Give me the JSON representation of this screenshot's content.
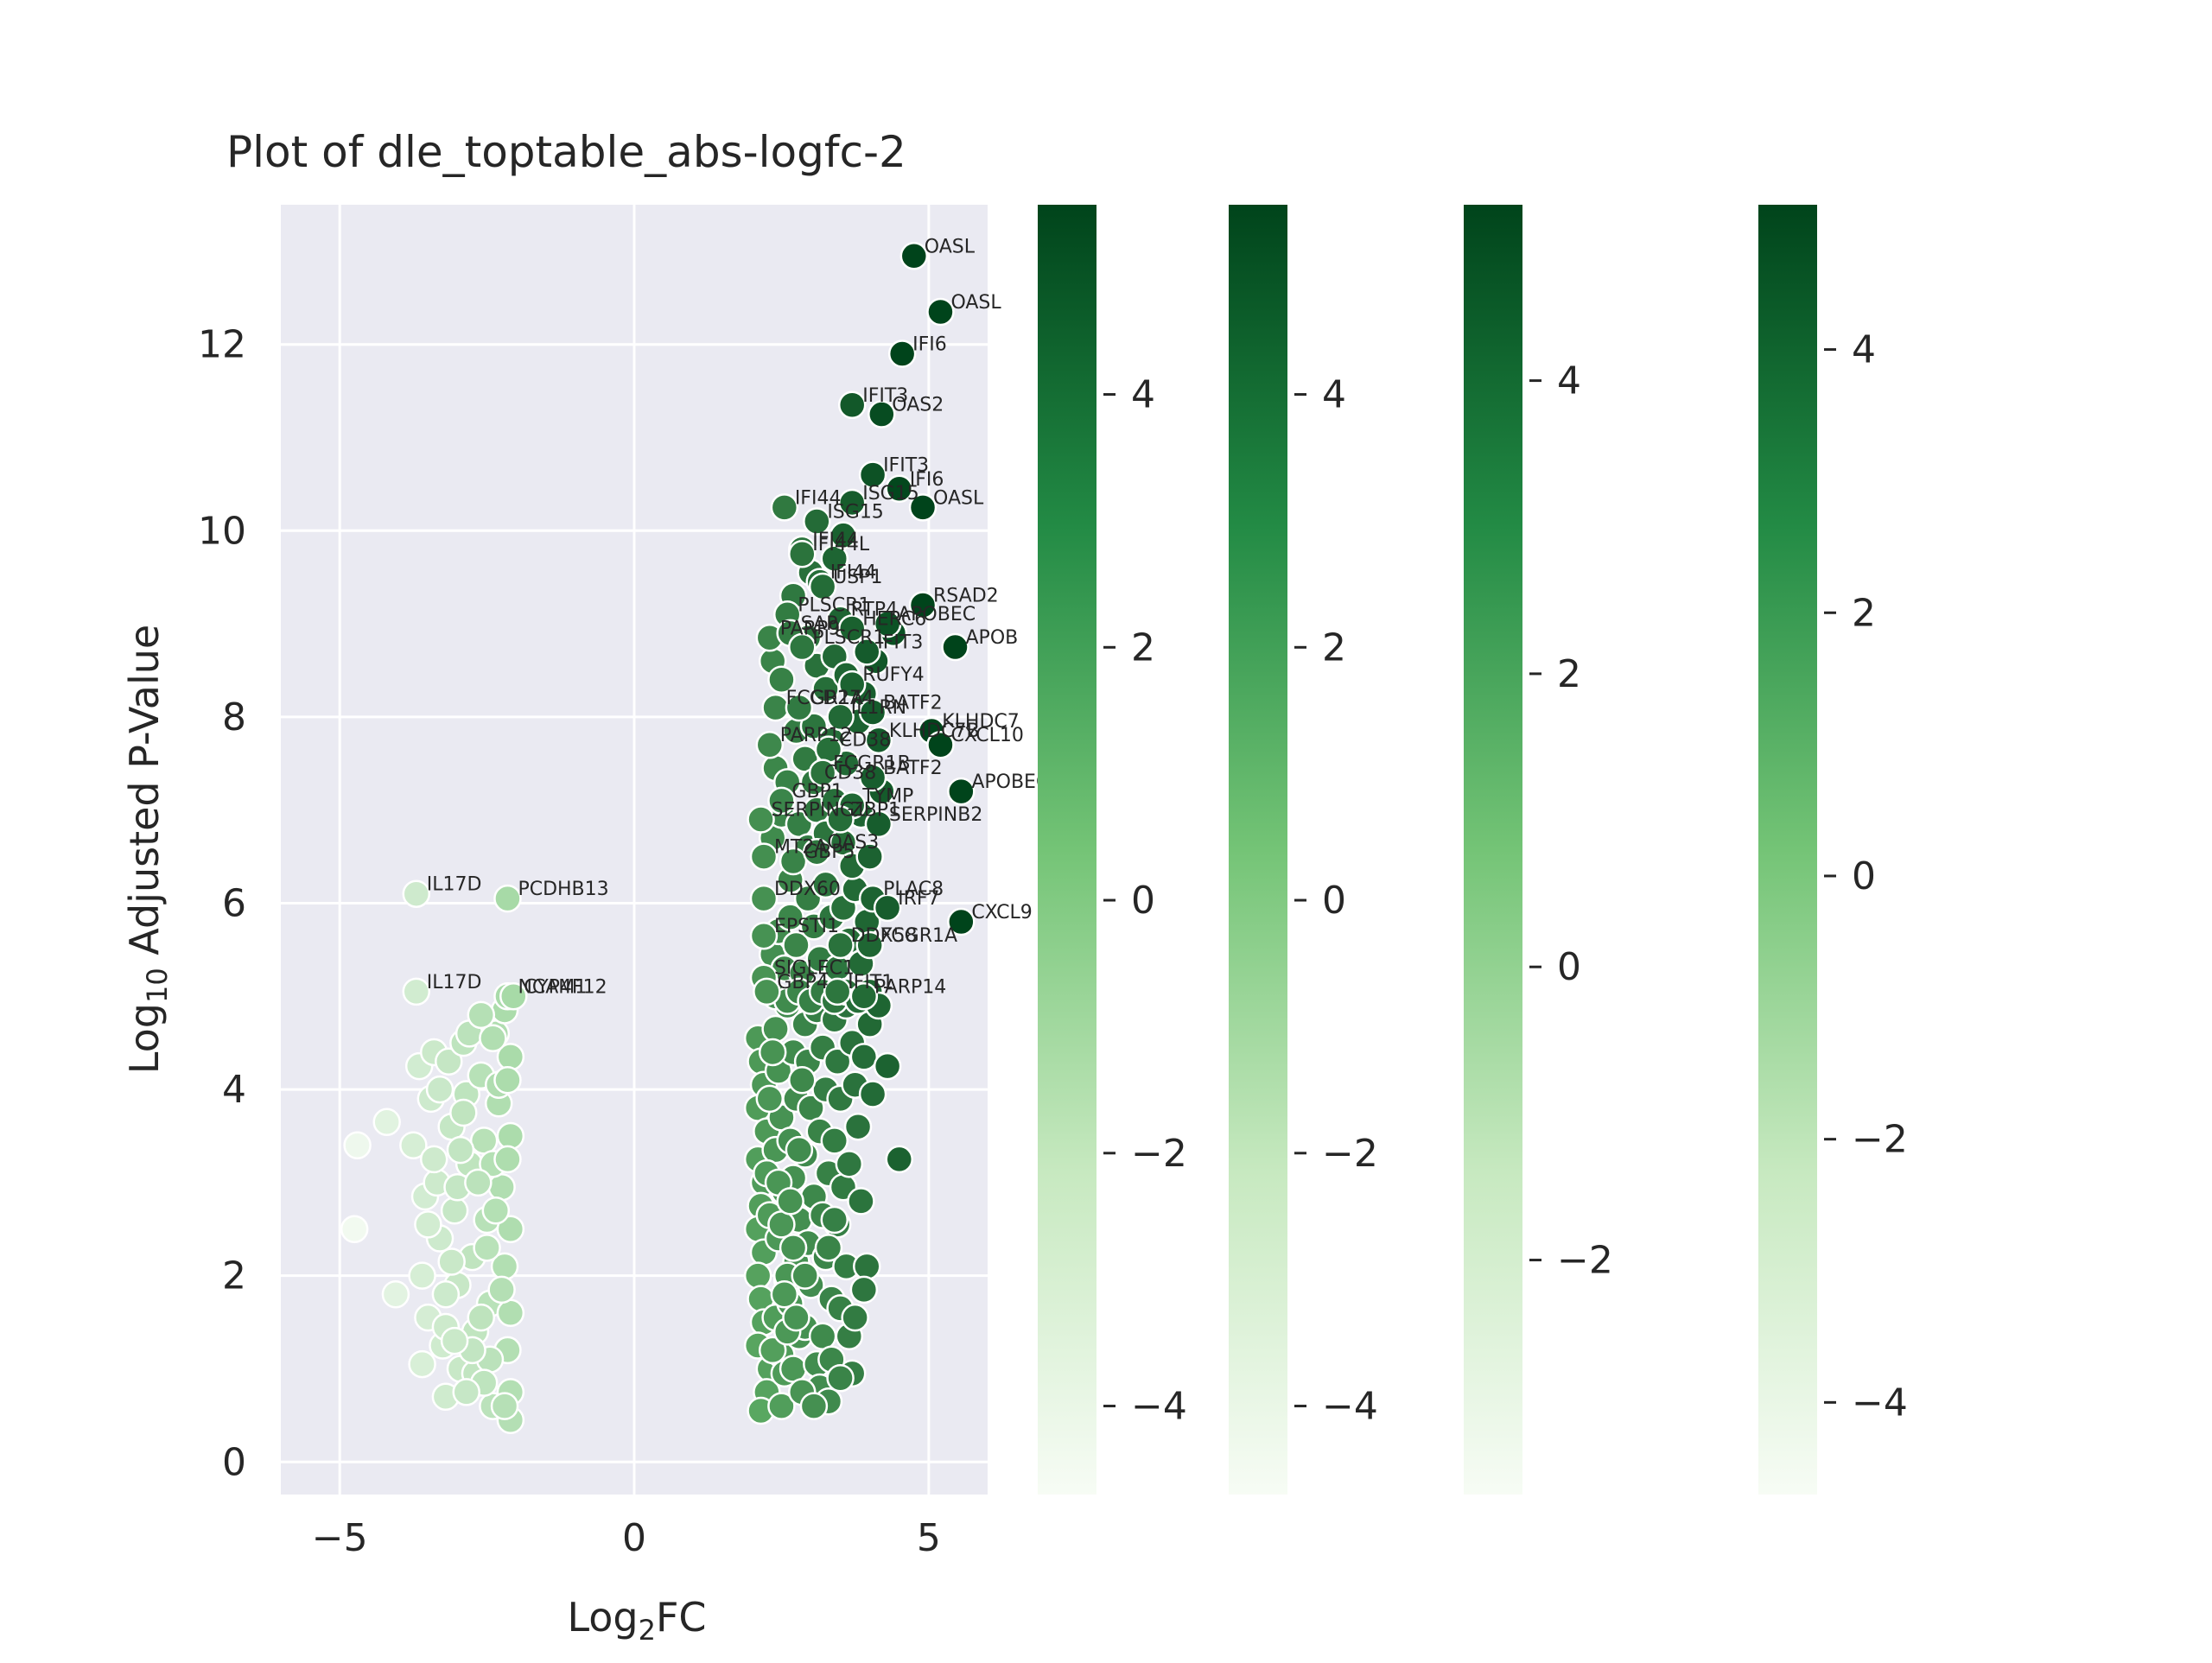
{
  "chart_data": {
    "type": "scatter",
    "title": "Plot of dle_toptable_abs-logfc-2",
    "xlabel_main": "Log",
    "xlabel_sub": "2",
    "xlabel_tail": "FC",
    "ylabel_main": "Log",
    "ylabel_sub": "10",
    "ylabel_tail": " Adjusted P-Value",
    "xlim": [
      -6,
      6
    ],
    "ylim": [
      -0.35,
      13.5
    ],
    "xticks": [
      -5,
      0,
      5
    ],
    "xtick_labels": [
      "−5",
      "0",
      "5"
    ],
    "yticks": [
      0,
      2,
      4,
      6,
      8,
      10,
      12
    ],
    "ytick_labels": [
      "0",
      "2",
      "4",
      "6",
      "8",
      "10",
      "12"
    ],
    "grid": true,
    "color_scale": {
      "low": "#f7fcf5",
      "mid": "#74c476",
      "high": "#00441b"
    },
    "colorbars": [
      {
        "range": [
          -4.7,
          5.5
        ],
        "ticks": [
          -4,
          -2,
          0,
          2,
          4
        ],
        "tick_labels": [
          "−4",
          "−2",
          "0",
          "2",
          "4"
        ]
      },
      {
        "range": [
          -4.7,
          5.5
        ],
        "ticks": [
          -4,
          -2,
          0,
          2,
          4
        ],
        "tick_labels": [
          "−4",
          "−2",
          "0",
          "2",
          "4"
        ]
      },
      {
        "range": [
          -3.6,
          5.2
        ],
        "ticks": [
          -2,
          0,
          2,
          4
        ],
        "tick_labels": [
          "−2",
          "0",
          "2",
          "4"
        ]
      },
      {
        "range": [
          -4.7,
          5.1
        ],
        "ticks": [
          -4,
          -2,
          0,
          2,
          4
        ],
        "tick_labels": [
          "−4",
          "−2",
          "0",
          "2",
          "4"
        ]
      }
    ],
    "labeled_points": [
      {
        "x": 4.75,
        "y": 12.95,
        "label": "OASL"
      },
      {
        "x": 5.2,
        "y": 12.35,
        "label": "OASL"
      },
      {
        "x": 4.55,
        "y": 11.9,
        "label": "IFI6"
      },
      {
        "x": 3.7,
        "y": 11.35,
        "label": "IFIT3"
      },
      {
        "x": 4.2,
        "y": 11.25,
        "label": "OAS2"
      },
      {
        "x": 4.05,
        "y": 10.6,
        "label": "IFIT3"
      },
      {
        "x": 4.5,
        "y": 10.45,
        "label": "IFI6"
      },
      {
        "x": 3.7,
        "y": 10.3,
        "label": "ISG15"
      },
      {
        "x": 4.9,
        "y": 10.25,
        "label": "OASL"
      },
      {
        "x": 2.55,
        "y": 10.25,
        "label": "IFI44"
      },
      {
        "x": 3.1,
        "y": 10.1,
        "label": "ISG15"
      },
      {
        "x": 2.85,
        "y": 9.8,
        "label": "IFI44"
      },
      {
        "x": 2.85,
        "y": 9.75,
        "label": "IFI44L"
      },
      {
        "x": 3.15,
        "y": 9.45,
        "label": "IFI44"
      },
      {
        "x": 3.2,
        "y": 9.4,
        "label": "USP1"
      },
      {
        "x": 4.9,
        "y": 9.2,
        "label": "RSAD2"
      },
      {
        "x": 2.6,
        "y": 9.1,
        "label": "PLSCR1"
      },
      {
        "x": 3.5,
        "y": 9.05,
        "label": "RTP4"
      },
      {
        "x": 4.3,
        "y": 9.0,
        "label": "APOBEC"
      },
      {
        "x": 2.3,
        "y": 8.85,
        "label": "PARP9"
      },
      {
        "x": 2.65,
        "y": 8.9,
        "label": "SAP"
      },
      {
        "x": 3.7,
        "y": 8.95,
        "label": "HERC6"
      },
      {
        "x": 2.85,
        "y": 8.75,
        "label": "PLSCR1"
      },
      {
        "x": 3.95,
        "y": 8.7,
        "label": "IFIT3"
      },
      {
        "x": 5.45,
        "y": 8.75,
        "label": "APOB"
      },
      {
        "x": 3.7,
        "y": 8.35,
        "label": "RUFY4"
      },
      {
        "x": 2.4,
        "y": 8.1,
        "label": "FCGR1A"
      },
      {
        "x": 2.8,
        "y": 8.1,
        "label": "CD274"
      },
      {
        "x": 3.5,
        "y": 8.0,
        "label": "IL1RN"
      },
      {
        "x": 4.05,
        "y": 8.05,
        "label": "BATF2"
      },
      {
        "x": 5.05,
        "y": 7.85,
        "label": "KLHDC7"
      },
      {
        "x": 5.2,
        "y": 7.7,
        "label": "CXCL10"
      },
      {
        "x": 2.3,
        "y": 7.7,
        "label": "PARP12"
      },
      {
        "x": 4.15,
        "y": 7.75,
        "label": "KLHDC7B"
      },
      {
        "x": 3.3,
        "y": 7.65,
        "label": "CD38"
      },
      {
        "x": 3.05,
        "y": 7.3,
        "label": "CD38"
      },
      {
        "x": 3.2,
        "y": 7.4,
        "label": "FCGR1B"
      },
      {
        "x": 4.05,
        "y": 7.35,
        "label": "BATF2"
      },
      {
        "x": 5.55,
        "y": 7.2,
        "label": "APOBEC3A"
      },
      {
        "x": 2.5,
        "y": 7.1,
        "label": "GBP1"
      },
      {
        "x": 3.7,
        "y": 7.05,
        "label": "TYMP"
      },
      {
        "x": 2.15,
        "y": 6.9,
        "label": "SERPING1"
      },
      {
        "x": 3.5,
        "y": 6.9,
        "label": "ZBP1"
      },
      {
        "x": 4.15,
        "y": 6.85,
        "label": "SERPINB2"
      },
      {
        "x": 2.2,
        "y": 6.5,
        "label": "MT2A"
      },
      {
        "x": 2.7,
        "y": 6.45,
        "label": "GBP5"
      },
      {
        "x": 3.1,
        "y": 6.55,
        "label": "OAS3"
      },
      {
        "x": 2.2,
        "y": 6.05,
        "label": "DDX60"
      },
      {
        "x": 4.05,
        "y": 6.05,
        "label": "PLAC8"
      },
      {
        "x": 4.3,
        "y": 5.95,
        "label": "IRF7"
      },
      {
        "x": 5.55,
        "y": 5.8,
        "label": "CXCL9"
      },
      {
        "x": 2.2,
        "y": 5.65,
        "label": "EPSTI1"
      },
      {
        "x": 3.5,
        "y": 5.55,
        "label": "DDX58"
      },
      {
        "x": 4.0,
        "y": 5.55,
        "label": "FCGR1A"
      },
      {
        "x": 2.2,
        "y": 5.2,
        "label": "SIGLEC1"
      },
      {
        "x": 2.25,
        "y": 5.05,
        "label": "GBP4"
      },
      {
        "x": 3.45,
        "y": 5.05,
        "label": "IFIT1"
      },
      {
        "x": 3.9,
        "y": 5.0,
        "label": "PARP14"
      },
      {
        "x": -3.7,
        "y": 6.1,
        "label": "IL17D"
      },
      {
        "x": -2.15,
        "y": 6.05,
        "label": "PCDHB13"
      },
      {
        "x": -3.7,
        "y": 5.05,
        "label": "IL17D"
      },
      {
        "x": -2.15,
        "y": 5.0,
        "label": "NCAM1"
      },
      {
        "x": -2.05,
        "y": 5.0,
        "label": "CYP4F12"
      }
    ],
    "points_right": [
      [
        2.1,
        4.55
      ],
      [
        2.15,
        4.3
      ],
      [
        2.2,
        4.05
      ],
      [
        2.1,
        3.8
      ],
      [
        2.25,
        3.55
      ],
      [
        2.1,
        3.25
      ],
      [
        2.2,
        3.0
      ],
      [
        2.15,
        2.75
      ],
      [
        2.1,
        2.5
      ],
      [
        2.2,
        2.25
      ],
      [
        2.1,
        2.0
      ],
      [
        2.15,
        1.75
      ],
      [
        2.2,
        1.5
      ],
      [
        2.1,
        1.25
      ],
      [
        2.3,
        1.0
      ],
      [
        2.25,
        0.75
      ],
      [
        2.15,
        0.55
      ],
      [
        2.4,
        4.65
      ],
      [
        2.45,
        4.2
      ],
      [
        2.5,
        3.7
      ],
      [
        2.4,
        3.35
      ],
      [
        2.55,
        2.9
      ],
      [
        2.45,
        2.4
      ],
      [
        2.6,
        1.95
      ],
      [
        2.4,
        1.55
      ],
      [
        2.5,
        1.15
      ],
      [
        2.55,
        0.95
      ],
      [
        2.6,
        4.9
      ],
      [
        2.7,
        4.4
      ],
      [
        2.75,
        3.9
      ],
      [
        2.65,
        3.45
      ],
      [
        2.7,
        3.05
      ],
      [
        2.8,
        2.6
      ],
      [
        2.75,
        2.15
      ],
      [
        2.65,
        1.7
      ],
      [
        2.8,
        1.35
      ],
      [
        2.7,
        1.0
      ],
      [
        2.9,
        4.7
      ],
      [
        2.95,
        4.3
      ],
      [
        3.0,
        3.8
      ],
      [
        2.9,
        3.3
      ],
      [
        3.05,
        2.85
      ],
      [
        2.95,
        2.35
      ],
      [
        3.0,
        1.9
      ],
      [
        2.9,
        1.45
      ],
      [
        3.1,
        1.05
      ],
      [
        3.15,
        0.8
      ],
      [
        3.1,
        4.85
      ],
      [
        3.2,
        4.45
      ],
      [
        3.25,
        4.0
      ],
      [
        3.15,
        3.55
      ],
      [
        3.3,
        3.1
      ],
      [
        3.2,
        2.65
      ],
      [
        3.25,
        2.2
      ],
      [
        3.35,
        1.75
      ],
      [
        3.2,
        1.35
      ],
      [
        3.3,
        0.65
      ],
      [
        3.4,
        4.75
      ],
      [
        3.45,
        4.3
      ],
      [
        3.5,
        3.9
      ],
      [
        3.4,
        3.45
      ],
      [
        3.55,
        2.95
      ],
      [
        3.45,
        2.55
      ],
      [
        3.6,
        2.1
      ],
      [
        3.5,
        1.65
      ],
      [
        3.65,
        1.35
      ],
      [
        3.7,
        0.95
      ],
      [
        3.6,
        4.9
      ],
      [
        3.7,
        4.5
      ],
      [
        3.75,
        4.05
      ],
      [
        3.8,
        3.6
      ],
      [
        3.65,
        3.2
      ],
      [
        3.85,
        2.8
      ],
      [
        3.95,
        2.1
      ],
      [
        4.0,
        4.7
      ],
      [
        3.9,
        4.35
      ],
      [
        4.05,
        3.95
      ],
      [
        4.3,
        4.25
      ],
      [
        4.5,
        3.25
      ],
      [
        3.4,
        2.6
      ],
      [
        3.3,
        2.3
      ],
      [
        2.6,
        2.0
      ],
      [
        2.35,
        5.45
      ],
      [
        2.45,
        5.7
      ],
      [
        2.55,
        5.3
      ],
      [
        2.65,
        5.85
      ],
      [
        2.75,
        5.55
      ],
      [
        2.85,
        5.25
      ],
      [
        2.95,
        6.05
      ],
      [
        3.05,
        5.75
      ],
      [
        3.15,
        5.4
      ],
      [
        3.25,
        6.2
      ],
      [
        3.35,
        5.85
      ],
      [
        3.45,
        5.3
      ],
      [
        3.55,
        5.95
      ],
      [
        3.65,
        5.6
      ],
      [
        3.75,
        6.15
      ],
      [
        3.85,
        5.35
      ],
      [
        3.95,
        5.8
      ],
      [
        2.35,
        6.7
      ],
      [
        2.5,
        6.95
      ],
      [
        2.65,
        6.25
      ],
      [
        2.8,
        6.85
      ],
      [
        2.95,
        6.6
      ],
      [
        3.1,
        7.0
      ],
      [
        3.25,
        6.75
      ],
      [
        3.4,
        7.1
      ],
      [
        3.55,
        6.65
      ],
      [
        3.7,
        6.4
      ],
      [
        3.85,
        6.95
      ],
      [
        4.0,
        6.5
      ],
      [
        2.4,
        7.45
      ],
      [
        2.6,
        7.3
      ],
      [
        2.75,
        7.85
      ],
      [
        2.9,
        7.55
      ],
      [
        3.05,
        7.9
      ],
      [
        3.35,
        7.75
      ],
      [
        3.6,
        7.5
      ],
      [
        3.8,
        7.95
      ],
      [
        4.2,
        7.2
      ],
      [
        2.35,
        8.6
      ],
      [
        2.5,
        8.4
      ],
      [
        2.95,
        8.85
      ],
      [
        3.1,
        8.55
      ],
      [
        3.25,
        8.3
      ],
      [
        3.4,
        8.65
      ],
      [
        3.6,
        8.45
      ],
      [
        3.9,
        8.25
      ],
      [
        4.1,
        8.6
      ],
      [
        4.4,
        8.9
      ],
      [
        2.7,
        9.3
      ],
      [
        3.0,
        9.55
      ],
      [
        3.4,
        9.7
      ],
      [
        3.55,
        9.95
      ],
      [
        2.4,
        5.0
      ],
      [
        2.6,
        4.95
      ],
      [
        2.8,
        5.05
      ],
      [
        3.0,
        4.95
      ],
      [
        3.2,
        5.05
      ],
      [
        3.4,
        4.95
      ],
      [
        3.6,
        5.05
      ],
      [
        3.8,
        4.95
      ],
      [
        4.0,
        5.05
      ],
      [
        4.15,
        4.9
      ],
      [
        2.3,
        2.65
      ],
      [
        2.35,
        1.2
      ],
      [
        2.5,
        0.6
      ],
      [
        2.85,
        0.75
      ],
      [
        3.05,
        0.6
      ],
      [
        3.35,
        1.1
      ],
      [
        3.5,
        0.9
      ],
      [
        3.75,
        1.55
      ],
      [
        3.9,
        1.85
      ],
      [
        2.25,
        3.1
      ],
      [
        2.3,
        3.9
      ],
      [
        2.35,
        4.4
      ],
      [
        2.45,
        3.0
      ],
      [
        2.5,
        2.55
      ],
      [
        2.55,
        1.8
      ],
      [
        2.6,
        1.4
      ],
      [
        2.65,
        2.8
      ],
      [
        2.7,
        2.3
      ],
      [
        2.75,
        1.55
      ],
      [
        2.8,
        3.35
      ],
      [
        2.85,
        4.1
      ],
      [
        2.9,
        2.0
      ]
    ],
    "points_left": [
      [
        -4.7,
        3.4
      ],
      [
        -4.75,
        2.5
      ],
      [
        -4.2,
        3.65
      ],
      [
        -4.05,
        1.8
      ],
      [
        -3.6,
        1.05
      ],
      [
        -3.75,
        3.4
      ],
      [
        -3.65,
        4.25
      ],
      [
        -3.55,
        2.85
      ],
      [
        -3.6,
        2.0
      ],
      [
        -3.5,
        1.55
      ],
      [
        -3.45,
        3.9
      ],
      [
        -3.4,
        4.4
      ],
      [
        -3.35,
        3.0
      ],
      [
        -3.3,
        2.4
      ],
      [
        -3.25,
        1.25
      ],
      [
        -3.2,
        0.7
      ],
      [
        -3.15,
        4.3
      ],
      [
        -3.1,
        3.6
      ],
      [
        -3.05,
        2.7
      ],
      [
        -3.0,
        1.9
      ],
      [
        -2.95,
        1.0
      ],
      [
        -2.9,
        4.5
      ],
      [
        -2.85,
        3.95
      ],
      [
        -2.8,
        3.2
      ],
      [
        -2.75,
        2.2
      ],
      [
        -2.7,
        1.4
      ],
      [
        -2.65,
        0.85
      ],
      [
        -2.6,
        4.15
      ],
      [
        -2.55,
        3.45
      ],
      [
        -2.5,
        2.6
      ],
      [
        -2.45,
        1.7
      ],
      [
        -2.4,
        0.6
      ],
      [
        -2.35,
        4.6
      ],
      [
        -2.3,
        3.85
      ],
      [
        -2.25,
        2.95
      ],
      [
        -2.2,
        2.1
      ],
      [
        -2.15,
        1.2
      ],
      [
        -2.1,
        4.35
      ],
      [
        -2.1,
        3.5
      ],
      [
        -2.1,
        2.5
      ],
      [
        -2.1,
        1.6
      ],
      [
        -2.1,
        0.75
      ],
      [
        -2.1,
        0.45
      ],
      [
        -2.2,
        4.85
      ],
      [
        -2.3,
        4.05
      ],
      [
        -2.4,
        3.2
      ],
      [
        -2.5,
        2.3
      ],
      [
        -2.6,
        1.55
      ],
      [
        -2.7,
        0.95
      ],
      [
        -2.8,
        4.6
      ],
      [
        -2.9,
        3.75
      ],
      [
        -3.0,
        2.95
      ],
      [
        -3.1,
        2.15
      ],
      [
        -3.2,
        1.45
      ],
      [
        -3.3,
        4.0
      ],
      [
        -3.4,
        3.25
      ],
      [
        -3.5,
        2.55
      ],
      [
        -3.2,
        1.8
      ],
      [
        -2.95,
        3.35
      ],
      [
        -2.65,
        3.0
      ],
      [
        -2.35,
        2.7
      ],
      [
        -2.15,
        3.25
      ],
      [
        -2.25,
        1.85
      ],
      [
        -2.45,
        1.1
      ],
      [
        -2.75,
        1.2
      ],
      [
        -3.05,
        1.3
      ],
      [
        -2.55,
        0.85
      ],
      [
        -2.85,
        0.75
      ],
      [
        -2.2,
        0.6
      ],
      [
        -2.4,
        4.55
      ],
      [
        -2.6,
        4.8
      ],
      [
        -2.15,
        4.1
      ]
    ]
  }
}
